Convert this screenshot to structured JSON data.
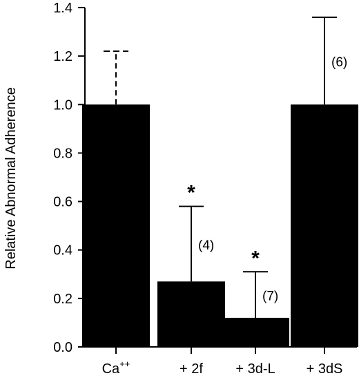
{
  "chart_data": {
    "type": "bar",
    "title": "",
    "xlabel": "",
    "ylabel": "Relative Abnormal Adherence",
    "ylim": [
      0,
      1.4
    ],
    "yticks": [
      "0.0",
      "0.2",
      "0.4",
      "0.6",
      "0.8",
      "1.0",
      "1.2",
      "1.4"
    ],
    "categories": [
      {
        "base": "Ca",
        "sup": "++"
      },
      {
        "base": "+ 2f",
        "sup": ""
      },
      {
        "base": "+ 3d-L",
        "sup": ""
      },
      {
        "base": "+ 3dS",
        "sup": ""
      }
    ],
    "values": [
      1.0,
      0.27,
      0.12,
      1.0
    ],
    "error_upper": [
      1.22,
      0.58,
      0.31,
      1.36
    ],
    "error_dashed": [
      true,
      false,
      false,
      false
    ],
    "n_labels": [
      "",
      "(4)",
      "(7)",
      "(6)"
    ],
    "significance": [
      "",
      "*",
      "*",
      ""
    ],
    "bar_color": "#000000",
    "grid": false
  }
}
